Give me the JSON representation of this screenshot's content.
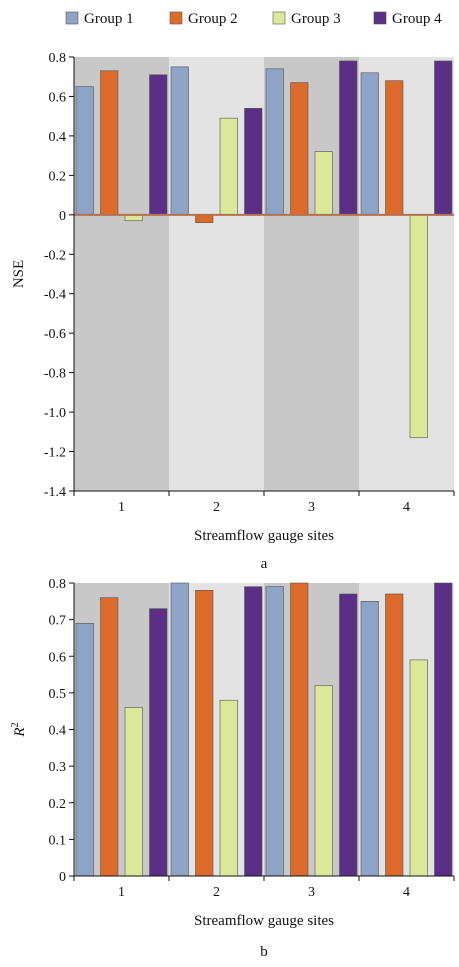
{
  "legend": [
    {
      "label": "Group 1",
      "color": "#8ea3c6"
    },
    {
      "label": "Group 2",
      "color": "#dc6a2a"
    },
    {
      "label": "Group 3",
      "color": "#dbe89a"
    },
    {
      "label": "Group 4",
      "color": "#5c2f86"
    }
  ],
  "colors": {
    "band_dark": "#c8c8c8",
    "band_light": "#e3e3e3",
    "zero_line": "#b5704e",
    "bar_outline": "#555555"
  },
  "chart_data": [
    {
      "type": "bar",
      "panel_label": "a",
      "title": "",
      "xlabel": "Streamflow gauge sites",
      "ylabel": "NSE",
      "ylabel_sup": "",
      "categories": [
        "1",
        "2",
        "3",
        "4"
      ],
      "ylim": [
        -1.4,
        0.8
      ],
      "yticks": [
        0.8,
        0.6,
        0.4,
        0.2,
        0,
        -0.2,
        -0.4,
        -0.6,
        -0.8,
        -1.0,
        -1.2,
        -1.4
      ],
      "ytick_labels": [
        "0.8",
        "0.6",
        "0.4",
        "0.2",
        "0",
        "-0.2",
        "-0.4",
        "-0.6",
        "-0.8",
        "-1.0",
        "-1.2",
        "-1.4"
      ],
      "grid": false,
      "legend_position": "top",
      "series": [
        {
          "name": "Group 1",
          "values": [
            0.65,
            0.75,
            0.74,
            0.72
          ]
        },
        {
          "name": "Group 2",
          "values": [
            0.73,
            -0.04,
            0.67,
            0.68
          ]
        },
        {
          "name": "Group 3",
          "values": [
            -0.03,
            0.49,
            0.32,
            -1.13
          ]
        },
        {
          "name": "Group 4",
          "values": [
            0.71,
            0.54,
            0.78,
            0.78
          ]
        }
      ]
    },
    {
      "type": "bar",
      "panel_label": "b",
      "title": "",
      "xlabel": "Streamflow gauge sites",
      "ylabel": "R",
      "ylabel_sup": "2",
      "categories": [
        "1",
        "2",
        "3",
        "4"
      ],
      "ylim": [
        0,
        0.8
      ],
      "yticks": [
        0.8,
        0.7,
        0.6,
        0.5,
        0.4,
        0.3,
        0.2,
        0.1,
        0
      ],
      "ytick_labels": [
        "0.8",
        "0.7",
        "0.6",
        "0.5",
        "0.4",
        "0.3",
        "0.2",
        "0.1",
        "0"
      ],
      "grid": false,
      "legend_position": "none",
      "series": [
        {
          "name": "Group 1",
          "values": [
            0.69,
            0.8,
            0.79,
            0.75
          ]
        },
        {
          "name": "Group 2",
          "values": [
            0.76,
            0.78,
            0.8,
            0.77
          ]
        },
        {
          "name": "Group 3",
          "values": [
            0.46,
            0.48,
            0.52,
            0.59
          ]
        },
        {
          "name": "Group 4",
          "values": [
            0.73,
            0.79,
            0.77,
            0.8
          ]
        }
      ]
    }
  ]
}
